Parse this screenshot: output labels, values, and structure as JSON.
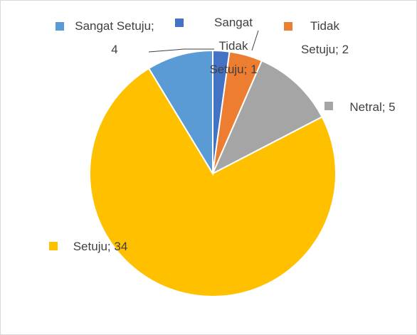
{
  "chart_data": {
    "type": "pie",
    "categories": [
      "Sangat Tidak Setuju",
      "Tidak Setuju",
      "Netral",
      "Setuju",
      "Sangat Setuju"
    ],
    "values": [
      1,
      2,
      5,
      34,
      4
    ],
    "value_labels": [
      "Sangat Tidak Setuju; 1",
      "Tidak Setuju; 2",
      "Netral; 5",
      "Setuju; 34",
      "Sangat Setuju; 4"
    ],
    "colors": [
      "#4472c4",
      "#ed7d31",
      "#a5a5a5",
      "#ffc000",
      "#5b9bd5"
    ]
  }
}
